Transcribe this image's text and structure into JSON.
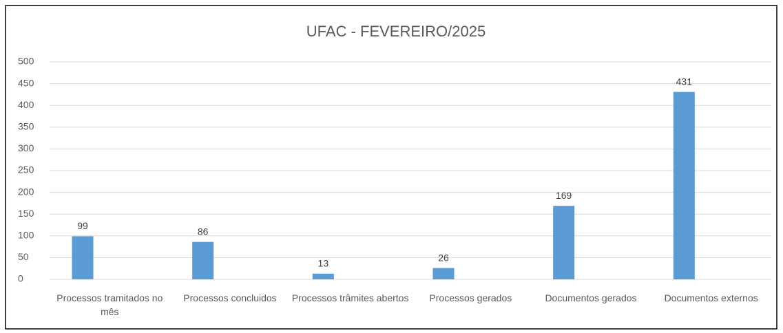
{
  "chart_data": {
    "type": "bar",
    "title": "UFAC - FEVEREIRO/2025",
    "categories": [
      "Processos tramitados no mês",
      "Processos concluidos",
      "Processos trâmites abertos",
      "Processos gerados",
      "Documentos gerados",
      "Documentos externos"
    ],
    "values": [
      99,
      86,
      13,
      26,
      169,
      431
    ],
    "color": "#5b9bd5",
    "ylim": [
      0,
      500
    ],
    "yticks": [
      0,
      50,
      100,
      150,
      200,
      250,
      300,
      350,
      400,
      450,
      500
    ],
    "grid": true
  }
}
